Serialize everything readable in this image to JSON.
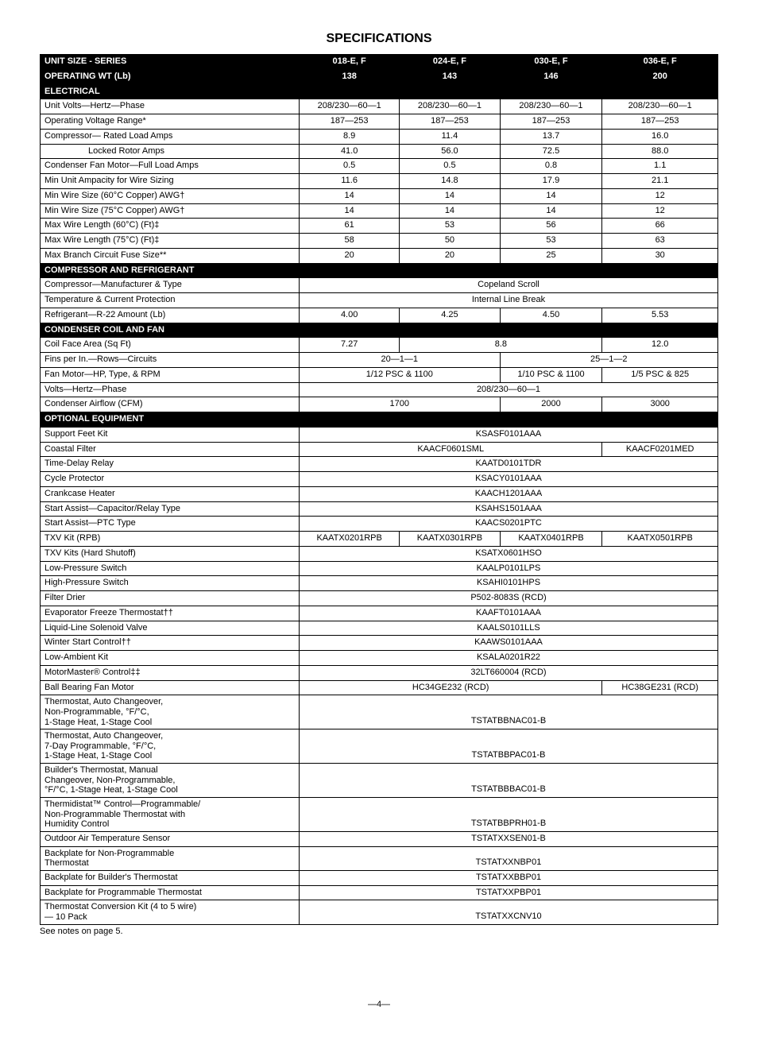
{
  "title": "SPECIFICATIONS",
  "footnote": "See notes on page 5.",
  "pagenum": "—4—",
  "cols": [
    "018-E, F",
    "024-E, F",
    "030-E, F",
    "036-E, F"
  ],
  "header_row": "UNIT SIZE - SERIES",
  "op_wt": {
    "label": "OPERATING WT (Lb)",
    "v": [
      "138",
      "143",
      "146",
      "200"
    ]
  },
  "sections": {
    "electrical": "ELECTRICAL",
    "compressor": "COMPRESSOR AND REFRIGERANT",
    "condenser": "CONDENSER COIL AND FAN",
    "optional": "OPTIONAL EQUIPMENT"
  },
  "elec": {
    "volts": {
      "l": "Unit Volts—Hertz—Phase",
      "v": [
        "208/230—60—1",
        "208/230—60—1",
        "208/230—60—1",
        "208/230—60—1"
      ]
    },
    "range": {
      "l": "Operating Voltage Range*",
      "v": [
        "187—253",
        "187—253",
        "187—253",
        "187—253"
      ]
    },
    "rla": {
      "l": "Compressor— Rated Load Amps",
      "v": [
        "8.9",
        "11.4",
        "13.7",
        "16.0"
      ]
    },
    "lra": {
      "l": "Locked Rotor Amps",
      "v": [
        "41.0",
        "56.0",
        "72.5",
        "88.0"
      ]
    },
    "cfm": {
      "l": "Condenser Fan Motor—Full Load Amps",
      "v": [
        "0.5",
        "0.5",
        "0.8",
        "1.1"
      ]
    },
    "amp": {
      "l": "Min Unit Ampacity for Wire Sizing",
      "v": [
        "11.6",
        "14.8",
        "17.9",
        "21.1"
      ]
    },
    "w60": {
      "l": "Min Wire Size (60°C Copper) AWG†",
      "v": [
        "14",
        "14",
        "14",
        "12"
      ]
    },
    "w75": {
      "l": "Min Wire Size (75°C Copper) AWG†",
      "v": [
        "14",
        "14",
        "14",
        "12"
      ]
    },
    "l60": {
      "l": "Max Wire Length (60°C) (Ft)‡",
      "v": [
        "61",
        "53",
        "56",
        "66"
      ]
    },
    "l75": {
      "l": "Max Wire Length (75°C) (Ft)‡",
      "v": [
        "58",
        "50",
        "53",
        "63"
      ]
    },
    "fuse": {
      "l": "Max Branch Circuit Fuse Size**",
      "v": [
        "20",
        "20",
        "25",
        "30"
      ]
    }
  },
  "comp": {
    "mfr": {
      "l": "Compressor—Manufacturer & Type",
      "span4": "Copeland Scroll"
    },
    "prot": {
      "l": "Temperature & Current Protection",
      "span4": "Internal Line Break"
    },
    "r22": {
      "l": "Refrigerant—R-22 Amount (Lb)",
      "v": [
        "4.00",
        "4.25",
        "4.50",
        "5.53"
      ]
    }
  },
  "cond": {
    "face": {
      "l": "Coil Face Area (Sq Ft)",
      "v1": "7.27",
      "v23": "8.8",
      "v4": "12.0"
    },
    "fins": {
      "l": "Fins per In.—Rows—Circuits",
      "v12": "20—1—1",
      "v34": "25—1—2"
    },
    "fan": {
      "l": "Fan Motor—HP, Type, & RPM",
      "v12": "1/12 PSC & 1100",
      "v3": "1/10 PSC & 1100",
      "v4": "1/5 PSC & 825"
    },
    "vhz": {
      "l": "Volts—Hertz—Phase",
      "span4": "208/230—60—1"
    },
    "cfm": {
      "l": "Condenser Airflow (CFM)",
      "v12": "1700",
      "v3": "2000",
      "v4": "3000"
    }
  },
  "opt": {
    "feet": {
      "l": "Support Feet Kit",
      "span4": "KSASF0101AAA"
    },
    "coastal": {
      "l": "Coastal Filter",
      "v123": "KAACF0601SML",
      "v4": "KAACF0201MED"
    },
    "delay": {
      "l": "Time-Delay Relay",
      "span4": "KAATD0101TDR"
    },
    "cycle": {
      "l": "Cycle Protector",
      "span4": "KSACY0101AAA"
    },
    "crank": {
      "l": "Crankcase Heater",
      "span4": "KAACH1201AAA"
    },
    "caprelay": {
      "l": "Start Assist—Capacitor/Relay Type",
      "span4": "KSAHS1501AAA"
    },
    "ptc": {
      "l": "Start Assist—PTC Type",
      "span4": "KAACS0201PTC"
    },
    "txv": {
      "l": "TXV Kit (RPB)",
      "v": [
        "KAATX0201RPB",
        "KAATX0301RPB",
        "KAATX0401RPB",
        "KAATX0501RPB"
      ]
    },
    "txvhs": {
      "l": "TXV Kits (Hard Shutoff)",
      "span4": "KSATX0601HSO"
    },
    "lps": {
      "l": "Low-Pressure Switch",
      "span4": "KAALP0101LPS"
    },
    "hps": {
      "l": "High-Pressure Switch",
      "span4": "KSAHI0101HPS"
    },
    "drier": {
      "l": "Filter Drier",
      "span4": "P502-8083S (RCD)"
    },
    "evap": {
      "l": "Evaporator Freeze Thermostat††",
      "span4": "KAAFT0101AAA"
    },
    "solenoid": {
      "l": "Liquid-Line Solenoid Valve",
      "span4": "KAALS0101LLS"
    },
    "winter": {
      "l": "Winter Start Control††",
      "span4": "KAAWS0101AAA"
    },
    "lowamb": {
      "l": "Low-Ambient Kit",
      "span4": "KSALA0201R22"
    },
    "mm": {
      "l": "MotorMaster® Control‡‡",
      "span4": "32LT660004 (RCD)"
    },
    "bbfan": {
      "l": "Ball Bearing Fan Motor",
      "v123": "HC34GE232 (RCD)",
      "v4": "HC38GE231 (RCD)"
    },
    "tstat1": {
      "l": "Thermostat, Auto Changeover,\nNon-Programmable, °F/°C,\n1-Stage Heat, 1-Stage Cool",
      "span4": "TSTATBBNAC01-B"
    },
    "tstat2": {
      "l": "Thermostat, Auto Changeover,\n7-Day Programmable, °F/°C,\n1-Stage Heat, 1-Stage Cool",
      "span4": "TSTATBBPAC01-B"
    },
    "tstat3": {
      "l": "Builder's Thermostat, Manual\nChangeover, Non-Programmable,\n°F/°C, 1-Stage Heat, 1-Stage Cool",
      "span4": "TSTATBBBAC01-B"
    },
    "tstat4": {
      "l": "Thermidistat™ Control—Programmable/\nNon-Programmable Thermostat with\nHumidity Control",
      "span4": "TSTATBBPRH01-B"
    },
    "oat": {
      "l": "Outdoor Air Temperature Sensor",
      "span4": "TSTATXXSEN01-B"
    },
    "bp1": {
      "l": "Backplate for Non-Programmable\nThermostat",
      "span4": "TSTATXXNBP01"
    },
    "bp2": {
      "l": "Backplate for Builder's Thermostat",
      "span4": "TSTATXXBBP01"
    },
    "bp3": {
      "l": "Backplate for Programmable Thermostat",
      "span4": "TSTATXXPBP01"
    },
    "conv": {
      "l": "Thermostat Conversion Kit (4 to 5 wire)\n— 10 Pack",
      "span4": "TSTATXXCNV10"
    }
  }
}
